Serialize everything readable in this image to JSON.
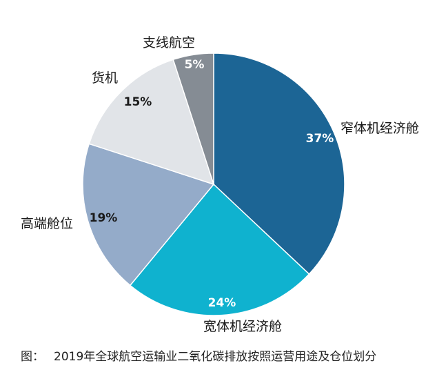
{
  "chart_data": {
    "type": "pie",
    "categories": [
      "窄体机经济舱",
      "宽体机经济舱",
      "高端舱位",
      "货机",
      "支线航空"
    ],
    "values": [
      37,
      24,
      19,
      15,
      5
    ],
    "value_labels": [
      "37%",
      "24%",
      "19%",
      "15%",
      "5%"
    ],
    "colors": [
      "#1c6595",
      "#0fb2cf",
      "#94abc9",
      "#e1e4e8",
      "#858c94"
    ],
    "value_label_colors": [
      "#ffffff",
      "#ffffff",
      "#1a1a1a",
      "#1a1a1a",
      "#ffffff"
    ],
    "unit": "%"
  },
  "caption": {
    "prefix": "图：",
    "text": "2019年全球航空运输业二氧化碳排放按照运营用途及仓位划分"
  }
}
